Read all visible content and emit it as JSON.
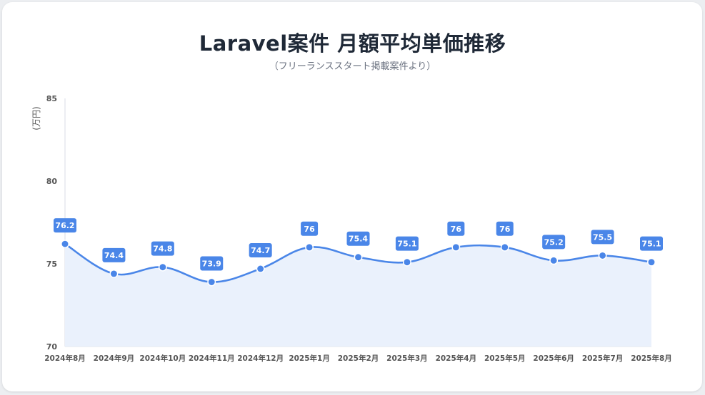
{
  "page": {
    "title": "Laravel案件 月額平均単価推移",
    "subtitle": "（フリーランススタート掲載案件より）"
  },
  "colors": {
    "line": "#4a86e8",
    "fill": "#eaf1fc",
    "label_bg": "#4a86e8",
    "label_text": "#ffffff",
    "axis_text": "#555555"
  },
  "chart_data": {
    "type": "area",
    "title": "Laravel案件 月額平均単価推移",
    "subtitle": "（フリーランススタート掲載案件より）",
    "xlabel": "",
    "ylabel": "(万円)",
    "ylim": [
      70,
      85
    ],
    "yticks": [
      70,
      75,
      80,
      85
    ],
    "grid": false,
    "legend": "none",
    "smooth": true,
    "categories": [
      "2024年8月",
      "2024年9月",
      "2024年10月",
      "2024年11月",
      "2024年12月",
      "2025年1月",
      "2025年2月",
      "2025年3月",
      "2025年4月",
      "2025年5月",
      "2025年6月",
      "2025年7月",
      "2025年8月"
    ],
    "series": [
      {
        "values": [
          76.2,
          74.4,
          74.8,
          73.9,
          74.7,
          76,
          75.4,
          75.1,
          76,
          76,
          75.2,
          75.5,
          75.1
        ],
        "data_labels": [
          "76.2",
          "74.4",
          "74.8",
          "73.9",
          "74.7",
          "76",
          "75.4",
          "75.1",
          "76",
          "76",
          "75.2",
          "75.5",
          "75.1"
        ]
      }
    ]
  }
}
